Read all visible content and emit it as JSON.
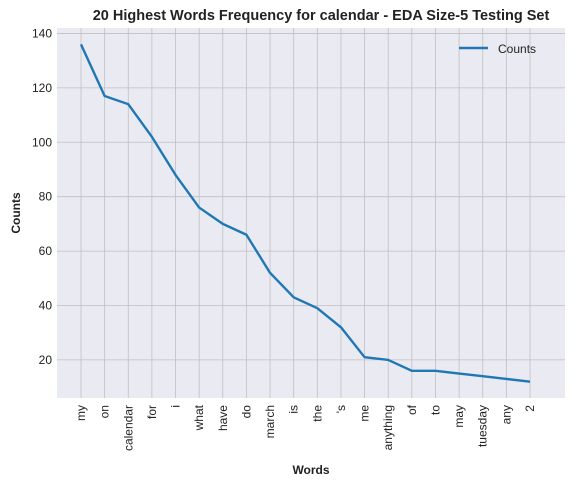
{
  "chart_data": {
    "type": "line",
    "title": "20 Highest Words Frequency for calendar - EDA Size-5 Testing Set",
    "xlabel": "Words",
    "ylabel": "Counts",
    "categories": [
      "my",
      "on",
      "calendar",
      "for",
      "i",
      "what",
      "have",
      "do",
      "march",
      "is",
      "the",
      "'s",
      "me",
      "anything",
      "of",
      "to",
      "may",
      "tuesday",
      "any",
      "2"
    ],
    "series": [
      {
        "name": "Counts",
        "values": [
          136,
          117,
          114,
          102,
          88,
          76,
          70,
          66,
          52,
          43,
          39,
          32,
          21,
          20,
          16,
          16,
          15,
          14,
          13,
          12
        ],
        "color": "#1f77b4"
      }
    ],
    "ylim": [
      6,
      142
    ],
    "yticks": [
      20,
      40,
      60,
      80,
      100,
      120,
      140
    ],
    "grid": true,
    "legend_position": "top-right",
    "background": "#eaeaf2",
    "grid_color": "#c0c0c0"
  }
}
